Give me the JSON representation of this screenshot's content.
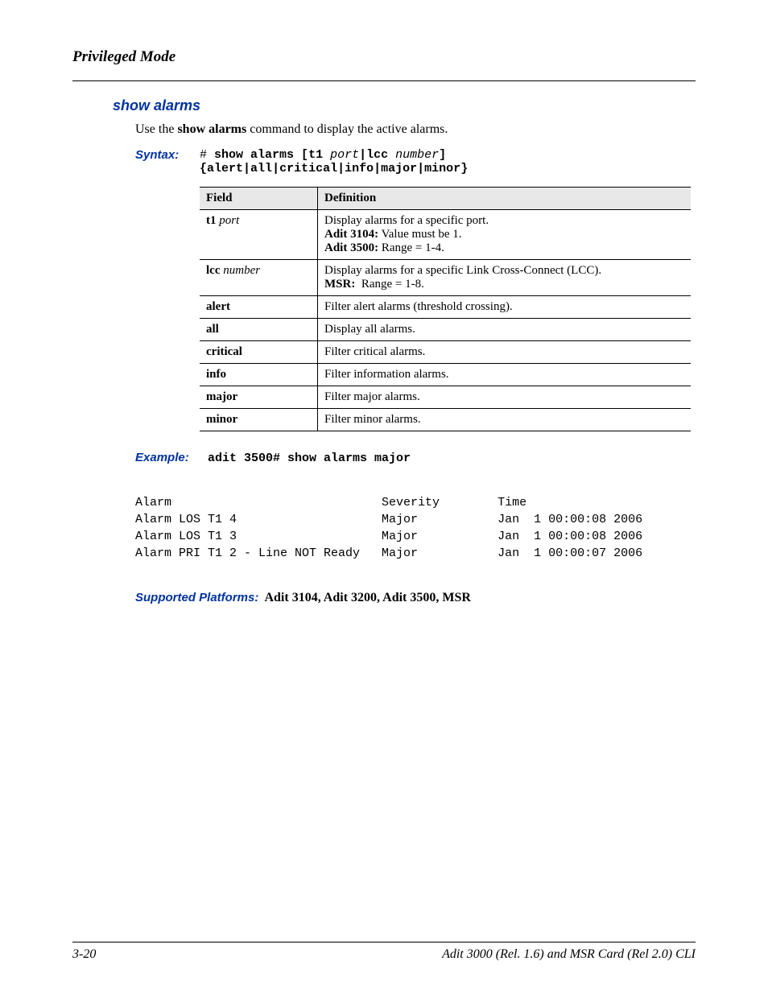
{
  "header": {
    "title": "Privileged Mode"
  },
  "section": {
    "title": "show alarms"
  },
  "intro": {
    "prefix": "Use the ",
    "cmd": "show alarms",
    "suffix": " command to display the active alarms."
  },
  "syntax": {
    "label": "Syntax:",
    "line1_parts": {
      "hash": "# ",
      "cmd": "show alarms ",
      "lb": "[",
      "t1": "t1 ",
      "port": "port",
      "pipe": "|",
      "lcc": "lcc ",
      "number": "number",
      "rb": "]"
    },
    "line2_parts": {
      "lb": "{",
      "alert": "alert",
      "p1": "|",
      "all": "all",
      "p2": "|",
      "critical": "critical",
      "p3": "|",
      "info": "info",
      "p4": "|",
      "major": "major",
      "p5": "|",
      "minor": "minor",
      "rb": "}"
    }
  },
  "table": {
    "headers": {
      "field": "Field",
      "definition": "Definition"
    },
    "rows": [
      {
        "field_bold": "t1 ",
        "field_italic": "port",
        "def_lines": {
          "l1": "Display alarms for a specific port.",
          "l2b": "Adit 3104:",
          "l2r": " Value must be 1.",
          "l3b": "Adit 3500:",
          "l3r": " Range = 1-4."
        }
      },
      {
        "field_bold": "lcc ",
        "field_italic": "number",
        "def_lines": {
          "l1": "Display alarms for a specific Link Cross-Connect (LCC).",
          "l2b": "MSR:",
          "l2r": "  Range = 1-8."
        }
      },
      {
        "field_bold": "alert",
        "def": "Filter alert alarms (threshold crossing)."
      },
      {
        "field_bold": "all",
        "def": "Display all alarms."
      },
      {
        "field_bold": "critical",
        "def": "Filter critical alarms."
      },
      {
        "field_bold": "info",
        "def": "Filter information alarms."
      },
      {
        "field_bold": "major",
        "def": "Filter major alarms."
      },
      {
        "field_bold": "minor",
        "def": "Filter minor alarms."
      }
    ]
  },
  "example": {
    "label": "Example:",
    "cmd": "adit 3500# show alarms major"
  },
  "output": "Alarm                             Severity        Time\nAlarm LOS T1 4                    Major           Jan  1 00:00:08 2006\nAlarm LOS T1 3                    Major           Jan  1 00:00:08 2006\nAlarm PRI T1 2 - Line NOT Ready   Major           Jan  1 00:00:07 2006",
  "supported": {
    "label": "Supported Platforms:",
    "value": "  Adit 3104, Adit 3200, Adit 3500, MSR"
  },
  "footer": {
    "page": "3-20",
    "doc": "Adit 3000 (Rel. 1.6) and MSR Card (Rel 2.0) CLI"
  }
}
